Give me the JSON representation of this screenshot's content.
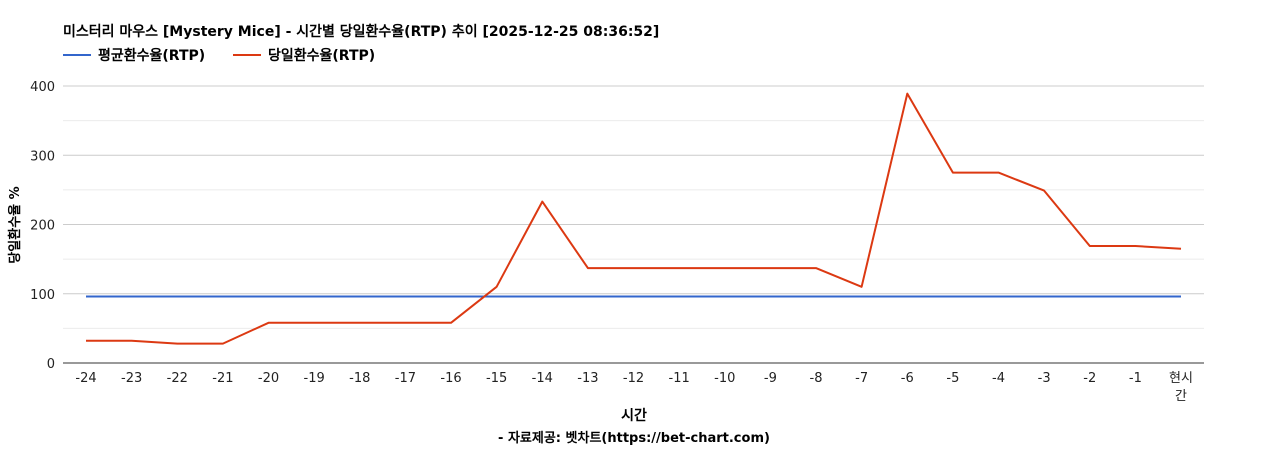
{
  "chart_data": {
    "type": "line",
    "title": "미스터리 마우스 [Mystery Mice] - 시간별 당일환수율(RTP) 추이 [2025-12-25 08:36:52]",
    "xlabel": "시간",
    "ylabel": "당일환수율 %",
    "source": "- 자료제공: 벳차트(https://bet-chart.com)",
    "categories": [
      "-24",
      "-23",
      "-22",
      "-21",
      "-20",
      "-19",
      "-18",
      "-17",
      "-16",
      "-15",
      "-14",
      "-13",
      "-12",
      "-11",
      "-10",
      "-9",
      "-8",
      "-7",
      "-6",
      "-5",
      "-4",
      "-3",
      "-2",
      "-1",
      "현시간"
    ],
    "ylim": [
      0,
      400
    ],
    "yticks": [
      0,
      100,
      200,
      300,
      400
    ],
    "grid": true,
    "legend_position": "top-left",
    "series": [
      {
        "name": "평균환수율(RTP)",
        "color": "#3366cc",
        "values": [
          96,
          96,
          96,
          96,
          96,
          96,
          96,
          96,
          96,
          96,
          96,
          96,
          96,
          96,
          96,
          96,
          96,
          96,
          96,
          96,
          96,
          96,
          96,
          96,
          96
        ]
      },
      {
        "name": "당일환수율(RTP)",
        "color": "#dc3912",
        "values": [
          32,
          32,
          28,
          28,
          58,
          58,
          58,
          58,
          58,
          110,
          233,
          137,
          137,
          137,
          137,
          137,
          137,
          110,
          389,
          275,
          275,
          249,
          169,
          169,
          165
        ]
      }
    ]
  }
}
